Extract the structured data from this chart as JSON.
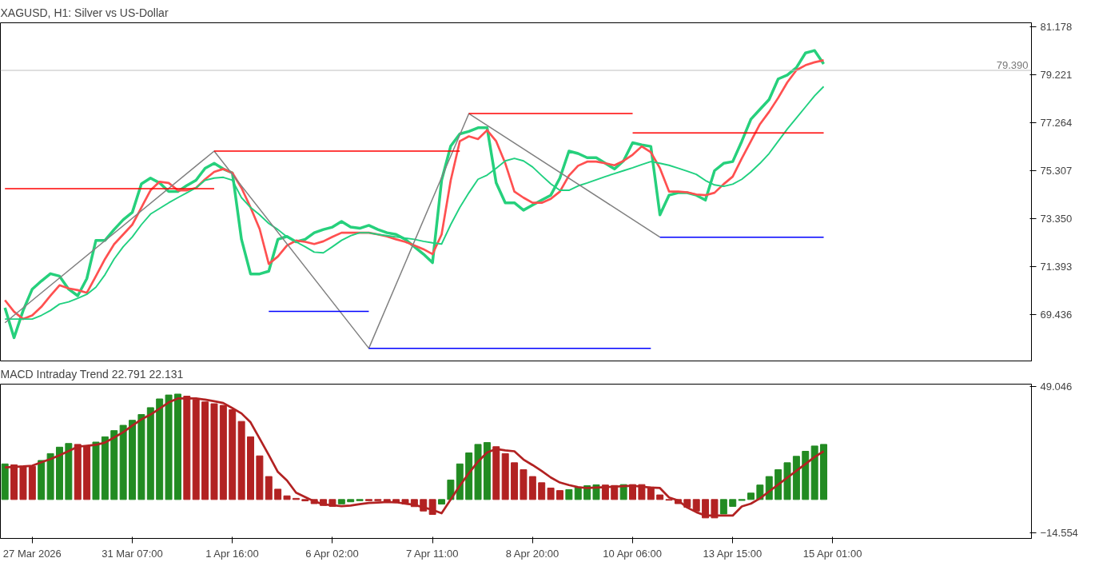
{
  "chart_data": [
    {
      "type": "line",
      "title": "XAGUSD, H1:  Silver vs US-Dollar",
      "ylim": [
        67.51,
        81.33
      ],
      "categories": [
        null,
        null,
        null,
        null,
        null,
        null,
        null,
        null,
        null,
        null,
        null,
        null,
        null,
        null,
        null,
        null,
        null,
        null,
        null,
        null,
        null,
        null,
        null,
        null,
        null,
        null,
        null,
        null,
        null,
        null,
        null,
        null,
        null,
        null,
        null,
        null,
        null,
        null,
        null,
        null,
        null,
        null,
        null,
        null,
        null,
        null,
        null,
        null,
        null,
        null,
        null,
        null,
        null,
        null,
        null,
        null,
        null,
        null,
        null,
        null,
        null,
        null,
        null,
        null,
        null,
        null,
        null,
        null,
        null,
        null,
        null,
        null,
        null,
        null,
        null,
        null,
        null,
        null,
        null,
        null,
        null,
        null,
        null,
        null,
        null,
        null,
        null,
        null,
        null,
        null,
        null,
        null
      ],
      "yticks": [
        81.178,
        79.221,
        77.264,
        75.307,
        {
          "value": 73.35,
          "label": "73.350"
        },
        71.393,
        69.436
      ],
      "tick_labels": "y",
      "grid": false,
      "ref_lines": [
        {
          "axis": "y",
          "value": 79.39,
          "label": "79.390",
          "color": "#c0c0c0"
        }
      ],
      "series": [
        {
          "color": "#26d07c",
          "values": [
            69.71,
            68.49,
            69.6,
            70.47,
            70.8,
            71.1,
            71.0,
            70.47,
            70.2,
            70.9,
            72.46,
            72.46,
            72.9,
            73.3,
            73.6,
            74.76,
            75.0,
            74.8,
            74.45,
            74.45,
            74.7,
            74.91,
            75.4,
            75.6,
            75.37,
            75.21,
            72.5,
            71.09,
            71.09,
            71.2,
            72.5,
            72.62,
            72.4,
            72.5,
            72.77,
            72.9,
            73.0,
            73.23,
            73.0,
            72.95,
            73.07,
            72.9,
            72.77,
            72.7,
            72.5,
            72.2,
            71.9,
            71.55,
            74.91,
            76.3,
            76.8,
            76.9,
            77.05,
            77.05,
            74.8,
            73.99,
            73.99,
            73.69,
            73.9,
            74.1,
            74.3,
            75.0,
            76.1,
            76.0,
            75.83,
            75.83,
            75.6,
            75.37,
            75.7,
            76.44,
            76.35,
            76.29,
            73.5,
            74.3,
            74.4,
            74.4,
            74.3,
            74.1,
            75.3,
            75.6,
            75.67,
            76.5,
            77.4,
            77.8,
            78.2,
            79.04,
            79.2,
            79.5,
            80.1,
            80.2,
            79.65,
            null
          ]
        },
        {
          "color": "#ff5050",
          "values": [
            70.02,
            69.55,
            69.25,
            69.4,
            69.75,
            70.2,
            70.63,
            70.5,
            70.43,
            70.32,
            71.0,
            71.7,
            72.3,
            72.7,
            73.1,
            73.8,
            74.5,
            74.85,
            74.8,
            74.5,
            74.5,
            74.6,
            74.95,
            75.25,
            75.37,
            75.21,
            74.6,
            73.8,
            72.92,
            71.5,
            71.8,
            72.25,
            72.45,
            72.4,
            72.31,
            72.42,
            72.6,
            72.77,
            72.77,
            72.77,
            72.77,
            72.7,
            72.62,
            72.5,
            72.4,
            72.25,
            72.1,
            71.9,
            72.7,
            74.9,
            76.5,
            76.7,
            76.59,
            76.95,
            76.5,
            75.6,
            74.45,
            74.2,
            73.99,
            73.99,
            74.15,
            74.45,
            75.1,
            75.5,
            75.67,
            75.67,
            75.6,
            75.52,
            75.7,
            75.95,
            76.29,
            76.05,
            75.4,
            74.45,
            74.45,
            74.42,
            74.33,
            74.3,
            74.4,
            74.75,
            75.06,
            75.8,
            76.5,
            77.2,
            77.7,
            78.27,
            78.9,
            79.4,
            79.6,
            79.72,
            79.8,
            null
          ]
        },
        {
          "color": "#20d080",
          "values": [
            69.25,
            69.25,
            69.25,
            69.25,
            69.4,
            69.6,
            69.86,
            69.95,
            70.1,
            70.26,
            70.55,
            71.06,
            71.7,
            72.2,
            72.6,
            73.1,
            73.53,
            73.76,
            73.99,
            74.2,
            74.4,
            74.6,
            74.91,
            75.0,
            75.03,
            74.91,
            74.2,
            73.8,
            73.5,
            73.15,
            72.9,
            72.6,
            72.4,
            72.2,
            71.98,
            71.95,
            72.2,
            72.46,
            72.65,
            72.77,
            72.77,
            72.7,
            72.65,
            72.6,
            72.55,
            72.5,
            72.42,
            72.36,
            72.31,
            73.1,
            73.8,
            74.4,
            74.95,
            75.12,
            75.4,
            75.7,
            75.8,
            75.7,
            75.45,
            75.1,
            74.76,
            74.5,
            74.5,
            74.68,
            74.8,
            74.93,
            75.06,
            75.18,
            75.3,
            75.42,
            75.55,
            75.67,
            75.6,
            75.52,
            75.4,
            75.28,
            75.15,
            74.9,
            74.72,
            74.66,
            74.75,
            74.95,
            75.25,
            75.6,
            76.0,
            76.5,
            77.0,
            77.45,
            77.9,
            78.35,
            78.73,
            null
          ]
        },
        {
          "color": "#808080",
          "values": [
            69.1,
            null,
            null,
            null,
            null,
            null,
            null,
            null,
            null,
            null,
            null,
            null,
            null,
            null,
            null,
            null,
            null,
            null,
            null,
            null,
            null,
            null,
            null,
            76.1,
            null,
            null,
            null,
            null,
            null,
            null,
            null,
            null,
            null,
            null,
            null,
            null,
            null,
            null,
            null,
            null,
            68.06,
            null,
            null,
            null,
            null,
            null,
            null,
            null,
            null,
            null,
            null,
            77.63,
            null,
            null,
            null,
            null,
            null,
            null,
            null,
            null,
            null,
            null,
            null,
            null,
            null,
            null,
            null,
            null,
            null,
            null,
            null,
            null,
            72.59,
            null,
            null,
            null,
            null,
            null,
            null,
            null,
            null,
            null,
            null,
            null,
            null,
            null,
            null,
            null,
            null,
            null,
            null,
            null
          ]
        },
        {
          "color": "#ff0000",
          "values": [
            74.57,
            null,
            null,
            null,
            null,
            null,
            null,
            null,
            null,
            null,
            null,
            null,
            null,
            null,
            null,
            null,
            null,
            null,
            null,
            null,
            null,
            null,
            null,
            74.57,
            null,
            null,
            null,
            null,
            null,
            null,
            null,
            null,
            null,
            null,
            null,
            null,
            null,
            null,
            null,
            null,
            null,
            null,
            null,
            null,
            null,
            null,
            null,
            null,
            null,
            null,
            null,
            null,
            null,
            null,
            null,
            null,
            null,
            null,
            null,
            null,
            null,
            null,
            null,
            null,
            null,
            null,
            null,
            null,
            null,
            null,
            null,
            null,
            null,
            null,
            null,
            null,
            null,
            null,
            null,
            null,
            null,
            null,
            null,
            null,
            null,
            null,
            null,
            null,
            null,
            null,
            null,
            null
          ]
        },
        {
          "color": "#ff0000",
          "values": [
            null,
            null,
            null,
            null,
            null,
            null,
            null,
            null,
            null,
            null,
            null,
            null,
            null,
            null,
            null,
            null,
            null,
            null,
            null,
            null,
            null,
            null,
            null,
            76.1,
            null,
            null,
            null,
            null,
            null,
            null,
            null,
            null,
            null,
            null,
            null,
            null,
            null,
            null,
            null,
            null,
            null,
            null,
            null,
            null,
            null,
            null,
            null,
            null,
            null,
            null,
            76.1,
            null,
            null,
            null,
            null,
            null,
            null,
            null,
            null,
            null,
            null,
            null,
            null,
            null,
            null,
            null,
            null,
            null,
            null,
            null,
            null,
            null,
            null,
            null,
            null,
            null,
            null,
            null,
            null,
            null,
            null,
            null,
            null,
            null,
            null,
            null,
            null,
            null,
            null,
            null,
            null,
            null
          ]
        },
        {
          "color": "#ff0000",
          "values": [
            null,
            null,
            null,
            null,
            null,
            null,
            null,
            null,
            null,
            null,
            null,
            null,
            null,
            null,
            null,
            null,
            null,
            null,
            null,
            null,
            null,
            null,
            null,
            null,
            null,
            null,
            null,
            null,
            null,
            null,
            null,
            null,
            null,
            null,
            null,
            null,
            null,
            null,
            null,
            null,
            null,
            null,
            null,
            null,
            null,
            null,
            null,
            null,
            null,
            null,
            null,
            77.63,
            null,
            null,
            null,
            null,
            null,
            null,
            null,
            null,
            null,
            null,
            null,
            null,
            null,
            null,
            null,
            null,
            null,
            77.63,
            null,
            null,
            null,
            null,
            null,
            null,
            null,
            null,
            null,
            null,
            null,
            null,
            null,
            null,
            null,
            null,
            null,
            null,
            null,
            null,
            null,
            null
          ]
        },
        {
          "color": "#ff0000",
          "values": [
            null,
            null,
            null,
            null,
            null,
            null,
            null,
            null,
            null,
            null,
            null,
            null,
            null,
            null,
            null,
            null,
            null,
            null,
            null,
            null,
            null,
            null,
            null,
            null,
            null,
            null,
            null,
            null,
            null,
            null,
            null,
            null,
            null,
            null,
            null,
            null,
            null,
            null,
            null,
            null,
            null,
            null,
            null,
            null,
            null,
            null,
            null,
            null,
            null,
            null,
            null,
            null,
            null,
            null,
            null,
            null,
            null,
            null,
            null,
            null,
            null,
            null,
            null,
            null,
            null,
            null,
            null,
            null,
            null,
            76.84,
            null,
            null,
            null,
            null,
            null,
            null,
            null,
            null,
            null,
            null,
            null,
            null,
            null,
            null,
            null,
            null,
            null,
            null,
            null,
            null,
            76.84,
            null
          ]
        },
        {
          "color": "#0000ff",
          "values": [
            null,
            null,
            null,
            null,
            null,
            null,
            null,
            null,
            null,
            null,
            null,
            null,
            null,
            null,
            null,
            null,
            null,
            null,
            null,
            null,
            null,
            null,
            null,
            null,
            null,
            null,
            null,
            null,
            null,
            69.56,
            null,
            null,
            null,
            null,
            null,
            null,
            null,
            null,
            null,
            null,
            69.56,
            null,
            null,
            null,
            null,
            null,
            null,
            null,
            null,
            null,
            null,
            null,
            null,
            null,
            null,
            null,
            null,
            null,
            null,
            null,
            null,
            null,
            null,
            null,
            null,
            null,
            null,
            null,
            null,
            null,
            null,
            null,
            null,
            null,
            null,
            null,
            null,
            null,
            null,
            null,
            null,
            null,
            null,
            null,
            null,
            null,
            null,
            null,
            null,
            null,
            null,
            null
          ]
        },
        {
          "color": "#0000ff",
          "values": [
            null,
            null,
            null,
            null,
            null,
            null,
            null,
            null,
            null,
            null,
            null,
            null,
            null,
            null,
            null,
            null,
            null,
            null,
            null,
            null,
            null,
            null,
            null,
            null,
            null,
            null,
            null,
            null,
            null,
            null,
            null,
            null,
            null,
            null,
            null,
            null,
            null,
            null,
            null,
            null,
            68.06,
            null,
            null,
            null,
            null,
            null,
            null,
            null,
            null,
            null,
            null,
            null,
            null,
            null,
            null,
            null,
            null,
            null,
            null,
            null,
            null,
            null,
            null,
            null,
            null,
            null,
            null,
            null,
            null,
            null,
            null,
            68.06,
            null,
            null,
            null,
            null,
            null,
            null,
            null,
            null,
            null,
            null,
            null,
            null,
            null,
            null,
            null,
            null,
            null,
            null,
            null,
            null
          ]
        },
        {
          "color": "#0000ff",
          "values": [
            null,
            null,
            null,
            null,
            null,
            null,
            null,
            null,
            null,
            null,
            null,
            null,
            null,
            null,
            null,
            null,
            null,
            null,
            null,
            null,
            null,
            null,
            null,
            null,
            null,
            null,
            null,
            null,
            null,
            null,
            null,
            null,
            null,
            null,
            null,
            null,
            null,
            null,
            null,
            null,
            null,
            null,
            null,
            null,
            null,
            null,
            null,
            null,
            null,
            null,
            null,
            null,
            null,
            null,
            null,
            null,
            null,
            null,
            null,
            null,
            null,
            null,
            null,
            null,
            null,
            null,
            null,
            null,
            null,
            null,
            null,
            null,
            72.59,
            null,
            null,
            null,
            null,
            null,
            null,
            null,
            null,
            null,
            null,
            null,
            null,
            null,
            null,
            null,
            null,
            null,
            72.59,
            null
          ]
        }
      ]
    },
    {
      "type": "bar",
      "title": "MACD Intraday Trend  22.791 22.131",
      "ylim": [
        -16.94,
        50.24
      ],
      "categories": [
        null,
        null,
        null,
        "27 Mar 2026",
        null,
        null,
        null,
        null,
        null,
        null,
        null,
        null,
        null,
        null,
        "31 Mar 07:00",
        null,
        null,
        null,
        null,
        null,
        null,
        null,
        null,
        null,
        null,
        "1 Apr 16:00",
        null,
        null,
        null,
        null,
        null,
        null,
        null,
        null,
        null,
        null,
        "6 Apr 02:00",
        null,
        null,
        null,
        null,
        null,
        null,
        null,
        null,
        null,
        null,
        "7 Apr 11:00",
        null,
        null,
        null,
        null,
        null,
        null,
        null,
        null,
        null,
        null,
        "8 Apr 20:00",
        null,
        null,
        null,
        null,
        null,
        null,
        null,
        null,
        null,
        null,
        "10 Apr 06:00",
        null,
        null,
        null,
        null,
        null,
        null,
        null,
        null,
        null,
        null,
        "13 Apr 15:00",
        null,
        null,
        null,
        null,
        null,
        null,
        null,
        null,
        null,
        null,
        "15 Apr 01:00"
      ],
      "yticks": [
        49.046,
        -14.554
      ],
      "grid": false,
      "series": [
        {
          "type": "bar",
          "values": [
            15.5,
            15.1,
            14.5,
            14.5,
            17,
            20,
            22.8,
            24.4,
            24,
            23.3,
            25,
            27.3,
            30,
            32.3,
            34.5,
            37,
            40,
            43.8,
            45.5,
            45.9,
            45,
            43.5,
            42.5,
            41.7,
            41,
            39.1,
            34,
            27.3,
            19,
            10,
            4.5,
            1.6,
            0.5,
            -0.6,
            -1.8,
            -2.6,
            -3,
            -1.9,
            -1,
            -0.5,
            -0.5,
            -0.5,
            -0.8,
            -1.3,
            -2,
            -3.1,
            -5,
            -6.5,
            -2,
            8.5,
            15.5,
            20.3,
            24,
            24.8,
            23,
            20,
            16,
            13,
            10,
            7.3,
            5,
            3.9,
            4.3,
            5.3,
            6,
            6.4,
            6.3,
            6.1,
            6.5,
            6.5,
            6.5,
            5.4,
            2,
            -0.3,
            -1.8,
            -3.4,
            -5,
            -8,
            -8,
            -6.3,
            -3,
            -0.4,
            2.8,
            6.3,
            10,
            13,
            16,
            18.8,
            21,
            23.3,
            24,
            null
          ],
          "colors": [
            "#228b22",
            "#b22222",
            "#b22222",
            "#b22222",
            "#228b22",
            "#228b22",
            "#228b22",
            "#228b22",
            "#b22222",
            "#b22222",
            "#228b22",
            "#228b22",
            "#228b22",
            "#228b22",
            "#228b22",
            "#228b22",
            "#228b22",
            "#228b22",
            "#228b22",
            "#228b22",
            "#b22222",
            "#b22222",
            "#b22222",
            "#b22222",
            "#b22222",
            "#b22222",
            "#b22222",
            "#b22222",
            "#b22222",
            "#b22222",
            "#b22222",
            "#b22222",
            "#b22222",
            "#b22222",
            "#b22222",
            "#b22222",
            "#b22222",
            "#228b22",
            "#228b22",
            "#228b22",
            "#b22222",
            "#b22222",
            "#b22222",
            "#b22222",
            "#b22222",
            "#b22222",
            "#b22222",
            "#b22222",
            "#228b22",
            "#228b22",
            "#228b22",
            "#228b22",
            "#228b22",
            "#228b22",
            "#b22222",
            "#b22222",
            "#b22222",
            "#b22222",
            "#b22222",
            "#b22222",
            "#b22222",
            "#b22222",
            "#228b22",
            "#228b22",
            "#228b22",
            "#228b22",
            "#b22222",
            "#b22222",
            "#228b22",
            "#b22222",
            "#b22222",
            "#b22222",
            "#b22222",
            "#b22222",
            "#b22222",
            "#b22222",
            "#b22222",
            "#b22222",
            "#b22222",
            "#228b22",
            "#228b22",
            "#228b22",
            "#228b22",
            "#228b22",
            "#228b22",
            "#228b22",
            "#228b22",
            "#228b22",
            "#228b22",
            "#228b22",
            "#228b22",
            "#228b22"
          ]
        },
        {
          "type": "line",
          "color": "#b22222",
          "values": [
            14,
            14.2,
            14.4,
            14.7,
            16.2,
            17.6,
            19.3,
            21.1,
            23,
            23.4,
            23.8,
            24.8,
            27,
            29.3,
            32.2,
            34.9,
            37,
            39.6,
            42.3,
            44,
            44,
            44,
            43.5,
            42.8,
            42,
            39.8,
            37.5,
            33.6,
            26.5,
            19.4,
            12,
            8.3,
            3,
            1.1,
            -0.8,
            -2.1,
            -2.5,
            -2.9,
            -2.6,
            -2,
            -1.5,
            -1.3,
            -1.1,
            -1.2,
            -1.8,
            -2.3,
            -3.4,
            -4.5,
            -6,
            0,
            6,
            11.5,
            16.5,
            20.5,
            22,
            21.4,
            21,
            17.4,
            15,
            12.4,
            9.6,
            7.4,
            6.3,
            5.4,
            5,
            5.2,
            5.4,
            5.6,
            5.8,
            6,
            5.6,
            5.2,
            5,
            0.9,
            -0.4,
            -3.5,
            -5.5,
            -7,
            -7,
            -7,
            -7,
            -3,
            -1.8,
            0.5,
            3.5,
            6.5,
            9.5,
            12.5,
            15.5,
            18.5,
            21,
            null
          ]
        }
      ]
    }
  ]
}
